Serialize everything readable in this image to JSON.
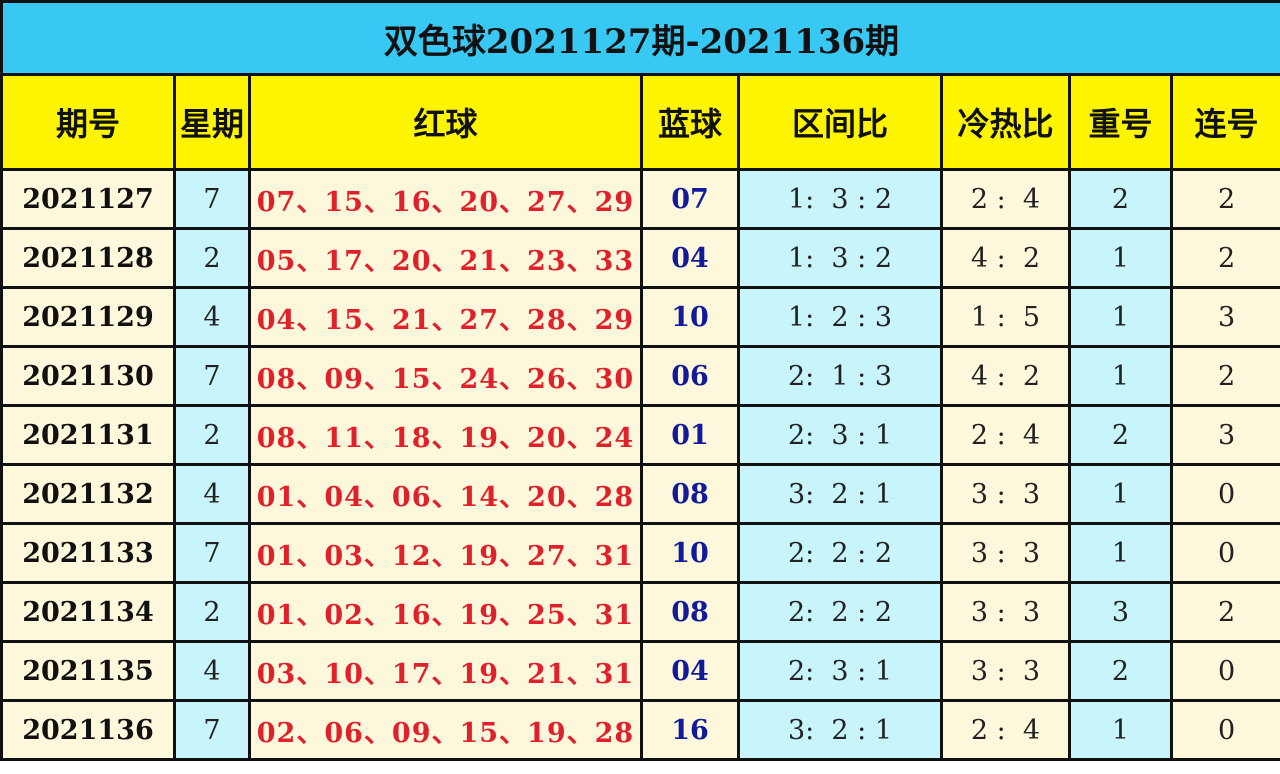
{
  "title": "双色球2021127期-2021136期",
  "headers": [
    "期号",
    "星期",
    "红球",
    "蓝球",
    "区间比",
    "冷热比",
    "重号",
    "连号"
  ],
  "colors": {
    "title_bg": "#38c8f4",
    "header_bg": "#fcf400",
    "cell_cream": "#fdf8db",
    "cell_cyan": "#c8f4fc",
    "red_ball": "#e0202a",
    "blue_ball": "#121a9c"
  },
  "rows": [
    {
      "period": "2021127",
      "weekday": "7",
      "red": "07、15、16、20、27、29",
      "blue": "07",
      "zone": "1:  3 : 2",
      "hotcold": "2 :  4",
      "repeat": "2",
      "consecutive": "2"
    },
    {
      "period": "2021128",
      "weekday": "2",
      "red": "05、17、20、21、23、33",
      "blue": "04",
      "zone": "1:  3 : 2",
      "hotcold": "4 :  2",
      "repeat": "1",
      "consecutive": "2"
    },
    {
      "period": "2021129",
      "weekday": "4",
      "red": "04、15、21、27、28、29",
      "blue": "10",
      "zone": "1:  2 : 3",
      "hotcold": "1 :  5",
      "repeat": "1",
      "consecutive": "3"
    },
    {
      "period": "2021130",
      "weekday": "7",
      "red": "08、09、15、24、26、30",
      "blue": "06",
      "zone": "2:  1 : 3",
      "hotcold": "4 :  2",
      "repeat": "1",
      "consecutive": "2"
    },
    {
      "period": "2021131",
      "weekday": "2",
      "red": "08、11、18、19、20、24",
      "blue": "01",
      "zone": "2:  3 : 1",
      "hotcold": "2 :  4",
      "repeat": "2",
      "consecutive": "3"
    },
    {
      "period": "2021132",
      "weekday": "4",
      "red": "01、04、06、14、20、28",
      "blue": "08",
      "zone": "3:  2 : 1",
      "hotcold": "3 :  3",
      "repeat": "1",
      "consecutive": "0"
    },
    {
      "period": "2021133",
      "weekday": "7",
      "red": "01、03、12、19、27、31",
      "blue": "10",
      "zone": "2:  2 : 2",
      "hotcold": "3 :  3",
      "repeat": "1",
      "consecutive": "0"
    },
    {
      "period": "2021134",
      "weekday": "2",
      "red": "01、02、16、19、25、31",
      "blue": "08",
      "zone": "2:  2 : 2",
      "hotcold": "3 :  3",
      "repeat": "3",
      "consecutive": "2"
    },
    {
      "period": "2021135",
      "weekday": "4",
      "red": "03、10、17、19、21、31",
      "blue": "04",
      "zone": "2:  3 : 1",
      "hotcold": "3 :  3",
      "repeat": "2",
      "consecutive": "0"
    },
    {
      "period": "2021136",
      "weekday": "7",
      "red": "02、06、09、15、19、28",
      "blue": "16",
      "zone": "3:  2 : 1",
      "hotcold": "2 :  4",
      "repeat": "1",
      "consecutive": "0"
    }
  ]
}
